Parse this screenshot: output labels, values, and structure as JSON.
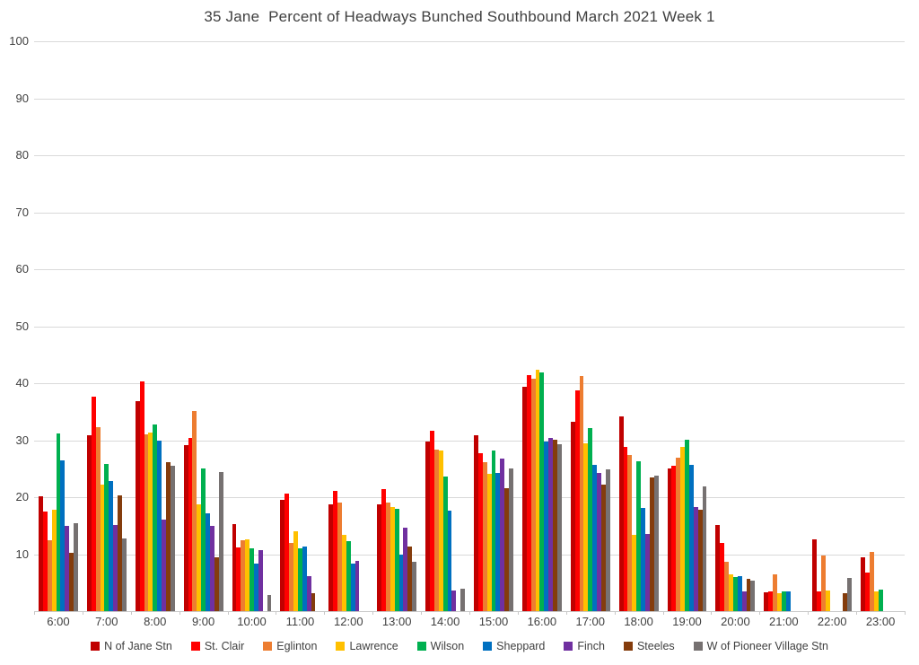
{
  "title": "35 Jane  Percent of Headways Bunched Southbound March 2021 Week 1",
  "colors": {
    "grid": "#d9d9d9",
    "axis_text": "#404040",
    "title_text": "#404040"
  },
  "chart_data": {
    "type": "bar",
    "title": "35 Jane  Percent of Headways Bunched Southbound March 2021 Week 1",
    "xlabel": "",
    "ylabel": "",
    "ylim": [
      0,
      100
    ],
    "yticks": [
      10,
      20,
      30,
      40,
      50,
      60,
      70,
      80,
      90,
      100
    ],
    "grid": true,
    "legend_position": "bottom",
    "categories": [
      "6:00",
      "7:00",
      "8:00",
      "9:00",
      "10:00",
      "11:00",
      "12:00",
      "13:00",
      "14:00",
      "15:00",
      "16:00",
      "17:00",
      "18:00",
      "19:00",
      "20:00",
      "21:00",
      "22:00",
      "23:00"
    ],
    "series": [
      {
        "name": "N of Jane Stn",
        "color": "#C00000",
        "values": [
          20.1,
          30.8,
          36.9,
          29.1,
          15.3,
          19.5,
          18.7,
          18.8,
          29.8,
          30.8,
          39.4,
          33.3,
          34.2,
          25.1,
          15.2,
          3.3,
          12.6,
          9.4
        ]
      },
      {
        "name": "St. Clair",
        "color": "#FF0000",
        "values": [
          17.5,
          37.7,
          40.4,
          30.4,
          11.2,
          20.6,
          21.1,
          21.5,
          31.6,
          27.7,
          41.5,
          38.8,
          28.9,
          25.5,
          12.0,
          3.4,
          3.5,
          6.8
        ]
      },
      {
        "name": "Eglinton",
        "color": "#ED7D31",
        "values": [
          12.5,
          32.3,
          31.1,
          35.2,
          12.4,
          12.0,
          19.1,
          19.0,
          28.3,
          26.1,
          40.8,
          41.3,
          27.4,
          26.9,
          8.7,
          6.4,
          9.8,
          10.4
        ]
      },
      {
        "name": "Lawrence",
        "color": "#FFC000",
        "values": [
          17.8,
          22.2,
          31.4,
          18.8,
          12.6,
          14.0,
          13.4,
          18.3,
          28.2,
          24.1,
          42.3,
          29.4,
          13.4,
          28.9,
          6.4,
          3.2,
          3.7,
          3.4
        ]
      },
      {
        "name": "Wilson",
        "color": "#00B050",
        "values": [
          31.2,
          25.9,
          32.7,
          25.1,
          11.0,
          11.0,
          12.3,
          17.9,
          23.6,
          28.2,
          41.9,
          32.1,
          26.3,
          30.1,
          6.0,
          3.4,
          0,
          3.8
        ]
      },
      {
        "name": "Sheppard",
        "color": "#0070C0",
        "values": [
          26.4,
          22.9,
          30.0,
          17.2,
          8.3,
          11.4,
          8.4,
          9.9,
          17.7,
          24.2,
          29.7,
          25.6,
          18.1,
          25.7,
          6.2,
          3.5,
          0,
          0
        ]
      },
      {
        "name": "Finch",
        "color": "#7030A0",
        "values": [
          15.0,
          15.2,
          16.0,
          14.9,
          10.7,
          6.2,
          8.8,
          14.6,
          3.6,
          26.8,
          30.4,
          24.2,
          13.5,
          18.2,
          3.4,
          0,
          0,
          0
        ]
      },
      {
        "name": "Steeles",
        "color": "#843C0C",
        "values": [
          10.3,
          20.4,
          26.2,
          9.4,
          0,
          3.1,
          0,
          11.4,
          0,
          21.6,
          30.1,
          22.2,
          23.5,
          17.8,
          5.6,
          0,
          3.2,
          0
        ]
      },
      {
        "name": "W of Pioneer Village Stn",
        "color": "#767171",
        "values": [
          15.5,
          12.8,
          25.5,
          24.4,
          2.9,
          0,
          0,
          8.6,
          4.0,
          25.0,
          29.3,
          24.9,
          23.8,
          21.9,
          5.3,
          0,
          5.8,
          0
        ]
      }
    ]
  }
}
